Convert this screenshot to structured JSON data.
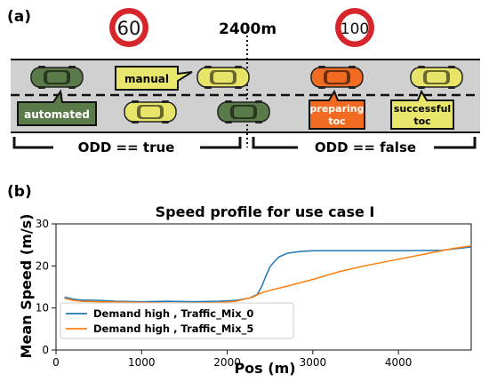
{
  "panel_a": {
    "label": "(a)",
    "speed_sign_left": "60",
    "speed_sign_right": "100",
    "distance_marker": "2400m",
    "callouts": {
      "manual": "manual",
      "automated": "automated",
      "preparing_toc_1": "preparing",
      "preparing_toc_2": "toc",
      "successful_toc_1": "successful",
      "successful_toc_2": "toc"
    },
    "odd_true": "ODD == true",
    "odd_false": "ODD == false",
    "colors": {
      "automated_car": "#5b7a4a",
      "manual_car": "#e8e46a",
      "preparing_car": "#f26b22",
      "road": "#d0d0d0",
      "sign_ring": "#d7262b"
    }
  },
  "panel_b": {
    "label": "(b)"
  },
  "chart_data": {
    "type": "line",
    "title": "Speed profile for use case I",
    "xlabel": "Pos (m)",
    "ylabel": "Mean Speed (m/s)",
    "xlim": [
      0,
      4850
    ],
    "ylim": [
      0,
      30
    ],
    "xticks": [
      0,
      1000,
      2000,
      3000,
      4000
    ],
    "yticks": [
      0,
      10,
      20,
      30
    ],
    "legend_position": "lower-left",
    "series": [
      {
        "name": "Demand high , Traffic_Mix_0",
        "color": "#1f77b4",
        "x": [
          100,
          200,
          300,
          500,
          700,
          1000,
          1300,
          1600,
          1900,
          2100,
          2250,
          2350,
          2400,
          2450,
          2500,
          2550,
          2600,
          2700,
          2800,
          2900,
          3000,
          3200,
          3500,
          4000,
          4500,
          4850
        ],
        "y": [
          12.6,
          12.1,
          11.9,
          11.8,
          11.6,
          11.5,
          11.6,
          11.5,
          11.6,
          11.8,
          12.3,
          13.2,
          15.0,
          17.5,
          19.8,
          21.0,
          22.1,
          23.0,
          23.3,
          23.5,
          23.6,
          23.6,
          23.6,
          23.6,
          23.7,
          24.5
        ]
      },
      {
        "name": "Demand high , Traffic_Mix_5",
        "color": "#ff7f0e",
        "x": [
          100,
          200,
          300,
          500,
          700,
          1000,
          1300,
          1600,
          1900,
          2100,
          2300,
          2400,
          2500,
          2700,
          3000,
          3300,
          3600,
          4000,
          4300,
          4600,
          4850
        ],
        "y": [
          12.3,
          11.8,
          11.6,
          11.5,
          11.4,
          11.3,
          11.2,
          11.2,
          11.3,
          11.6,
          12.6,
          13.6,
          14.2,
          15.2,
          16.8,
          18.6,
          20.0,
          21.6,
          22.8,
          24.0,
          24.8
        ]
      }
    ]
  }
}
